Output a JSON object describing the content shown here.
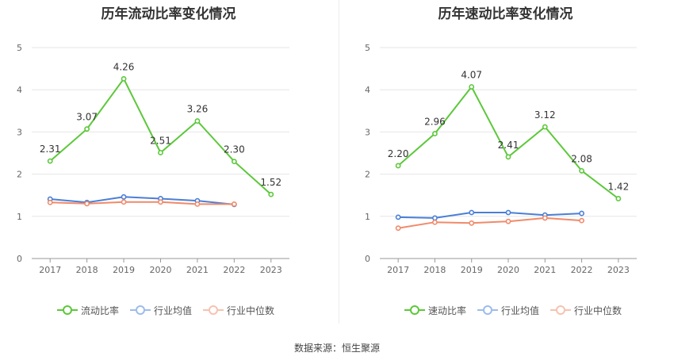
{
  "source_label": "数据来源：恒生聚源",
  "chart_data": [
    {
      "type": "line",
      "title": "历年流动比率变化情况",
      "categories": [
        "2017",
        "2018",
        "2019",
        "2020",
        "2021",
        "2022",
        "2023"
      ],
      "ylim": [
        0,
        5
      ],
      "yticks": [
        "0",
        "1",
        "2",
        "3",
        "4",
        "5"
      ],
      "series": [
        {
          "name": "流动比率",
          "color": "#5cc83a",
          "values": [
            2.31,
            3.07,
            4.26,
            2.51,
            3.26,
            2.3,
            1.52
          ],
          "labels": [
            "2.31",
            "3.07",
            "4.26",
            "2.51",
            "3.26",
            "2.30",
            "1.52"
          ]
        },
        {
          "name": "行业均值",
          "color": "#4a7fd8",
          "values": [
            1.41,
            1.33,
            1.46,
            1.42,
            1.37,
            1.28,
            null
          ]
        },
        {
          "name": "行业中位数",
          "color": "#f08a6a",
          "values": [
            1.33,
            1.3,
            1.34,
            1.34,
            1.29,
            1.29,
            null
          ]
        }
      ]
    },
    {
      "type": "line",
      "title": "历年速动比率变化情况",
      "categories": [
        "2017",
        "2018",
        "2019",
        "2020",
        "2021",
        "2022",
        "2023"
      ],
      "ylim": [
        0,
        5
      ],
      "yticks": [
        "0",
        "1",
        "2",
        "3",
        "4",
        "5"
      ],
      "series": [
        {
          "name": "速动比率",
          "color": "#5cc83a",
          "values": [
            2.2,
            2.96,
            4.07,
            2.41,
            3.12,
            2.08,
            1.42
          ],
          "labels": [
            "2.20",
            "2.96",
            "4.07",
            "2.41",
            "3.12",
            "2.08",
            "1.42"
          ]
        },
        {
          "name": "行业均值",
          "color": "#4a7fd8",
          "values": [
            0.98,
            0.96,
            1.09,
            1.09,
            1.03,
            1.07,
            null
          ]
        },
        {
          "name": "行业中位数",
          "color": "#f08a6a",
          "values": [
            0.72,
            0.86,
            0.84,
            0.88,
            0.96,
            0.9,
            null
          ]
        }
      ]
    }
  ]
}
